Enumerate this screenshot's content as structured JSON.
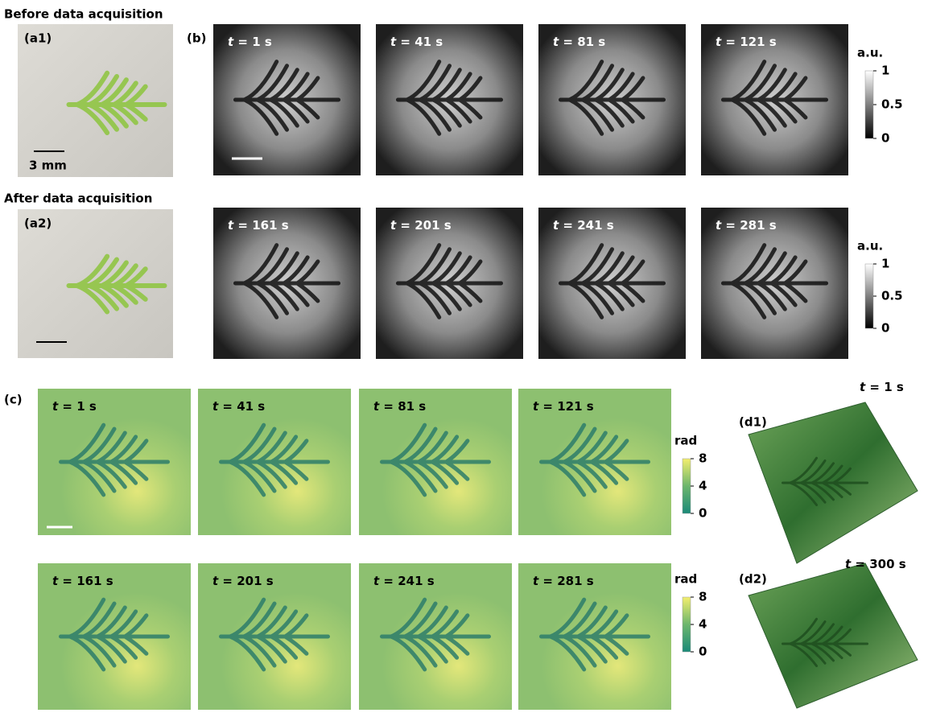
{
  "panel_a": {
    "before_title": "Before data acquisition",
    "a1_label": "(a1)",
    "scale_bar": "3 mm",
    "after_title": "After data acquisition",
    "a2_label": "(a2)"
  },
  "panel_b": {
    "label": "(b)",
    "frames": [
      {
        "symbol": "t",
        "text": "= 1 s"
      },
      {
        "symbol": "t",
        "text": "= 41 s"
      },
      {
        "symbol": "t",
        "text": "= 81 s"
      },
      {
        "symbol": "t",
        "text": "= 121 s"
      },
      {
        "symbol": "t",
        "text": "= 161 s"
      },
      {
        "symbol": "t",
        "text": "= 201 s"
      },
      {
        "symbol": "t",
        "text": "= 241 s"
      },
      {
        "symbol": "t",
        "text": "= 281 s"
      }
    ],
    "colorbars": [
      {
        "unit": "a.u.",
        "lim": [
          0,
          1
        ],
        "ticks": [
          0,
          0.5,
          1
        ]
      },
      {
        "unit": "a.u.",
        "lim": [
          0,
          1
        ],
        "ticks": [
          0,
          0.5,
          1
        ]
      }
    ]
  },
  "panel_c": {
    "label": "(c)",
    "frames": [
      {
        "symbol": "t",
        "text": "= 1 s"
      },
      {
        "symbol": "t",
        "text": "= 41 s"
      },
      {
        "symbol": "t",
        "text": "= 81 s"
      },
      {
        "symbol": "t",
        "text": "= 121 s"
      },
      {
        "symbol": "t",
        "text": "= 161 s"
      },
      {
        "symbol": "t",
        "text": "= 201 s"
      },
      {
        "symbol": "t",
        "text": "= 241 s"
      },
      {
        "symbol": "t",
        "text": "= 281 s"
      }
    ],
    "colorbars": [
      {
        "unit": "rad",
        "lim": [
          0,
          8
        ],
        "ticks": [
          0,
          4,
          8
        ]
      },
      {
        "unit": "rad",
        "lim": [
          0,
          8
        ],
        "ticks": [
          0,
          4,
          8
        ]
      }
    ]
  },
  "panel_d": {
    "d1": {
      "label": "(d1)",
      "time": {
        "symbol": "t",
        "text": "= 1 s"
      }
    },
    "d2": {
      "label": "(d2)",
      "time": {
        "symbol": "t",
        "text": "= 300 s"
      }
    }
  }
}
